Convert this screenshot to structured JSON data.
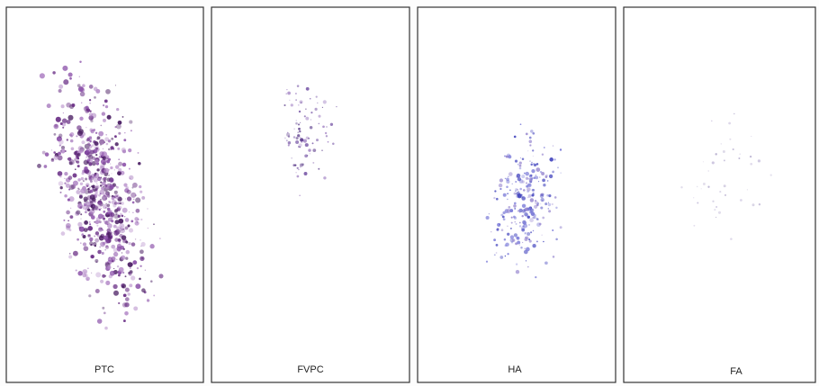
{
  "panels": [
    {
      "label": "PTC"
    },
    {
      "label": "FVPC"
    },
    {
      "label": "HA"
    },
    {
      "label": "FA"
    }
  ]
}
